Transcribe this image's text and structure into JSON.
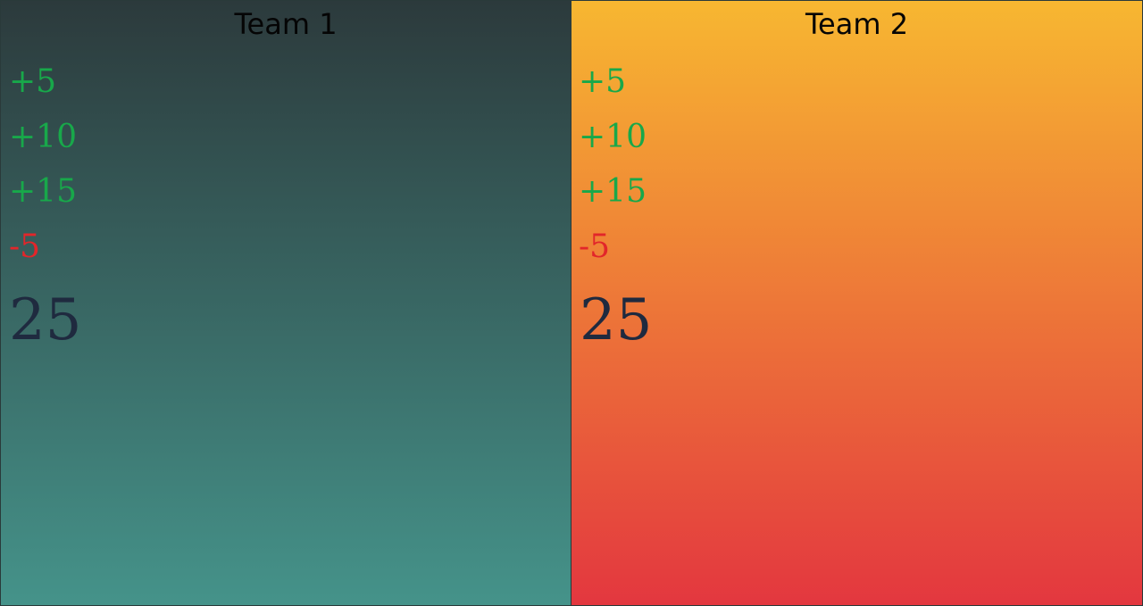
{
  "teams": [
    {
      "name": "Team 1",
      "buttons": [
        {
          "label": "+5"
        },
        {
          "label": "+10"
        },
        {
          "label": "+15"
        },
        {
          "label": "-5"
        }
      ],
      "score": "25"
    },
    {
      "name": "Team 2",
      "buttons": [
        {
          "label": "+5"
        },
        {
          "label": "+10"
        },
        {
          "label": "+15"
        },
        {
          "label": "-5"
        }
      ],
      "score": "25"
    }
  ],
  "colors": {
    "plus": "#18a84a",
    "minus": "#e2262a",
    "score": "#1f2a3f",
    "team1_gradient": [
      "#2c3a3c",
      "#45938a"
    ],
    "team2_gradient": [
      "#f7b731",
      "#e3373f"
    ]
  }
}
